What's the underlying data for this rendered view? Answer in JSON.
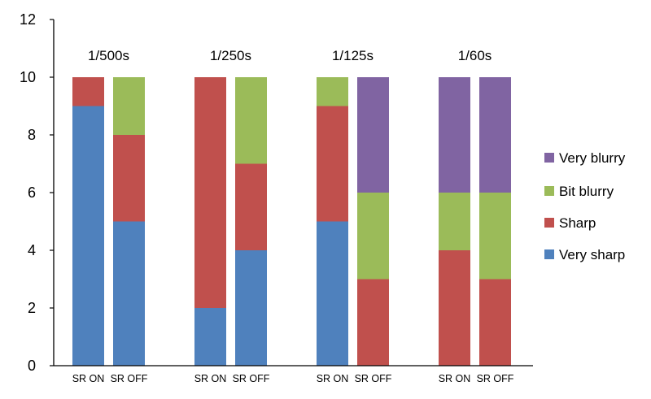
{
  "chart_data": {
    "type": "stacked-bar",
    "title": "",
    "xlabel": "",
    "ylabel": "",
    "ylim": [
      0,
      12
    ],
    "yticks": [
      0,
      2,
      4,
      6,
      8,
      10,
      12
    ],
    "grid": false,
    "legend_position": "right",
    "groups": [
      {
        "label": "1/500s",
        "bars": [
          {
            "label": "SR ON",
            "values": {
              "very_sharp": 9,
              "sharp": 1,
              "bit_blurry": 0,
              "very_blurry": 0
            }
          },
          {
            "label": "SR OFF",
            "values": {
              "very_sharp": 5,
              "sharp": 3,
              "bit_blurry": 2,
              "very_blurry": 0
            }
          }
        ]
      },
      {
        "label": "1/250s",
        "bars": [
          {
            "label": "SR ON",
            "values": {
              "very_sharp": 2,
              "sharp": 8,
              "bit_blurry": 0,
              "very_blurry": 0
            }
          },
          {
            "label": "SR OFF",
            "values": {
              "very_sharp": 4,
              "sharp": 3,
              "bit_blurry": 3,
              "very_blurry": 0
            }
          }
        ]
      },
      {
        "label": "1/125s",
        "bars": [
          {
            "label": "SR ON",
            "values": {
              "very_sharp": 5,
              "sharp": 4,
              "bit_blurry": 1,
              "very_blurry": 0
            }
          },
          {
            "label": "SR OFF",
            "values": {
              "very_sharp": 0,
              "sharp": 3,
              "bit_blurry": 3,
              "very_blurry": 4
            }
          }
        ]
      },
      {
        "label": "1/60s",
        "bars": [
          {
            "label": "SR ON",
            "values": {
              "very_sharp": 0,
              "sharp": 4,
              "bit_blurry": 2,
              "very_blurry": 4
            }
          },
          {
            "label": "SR OFF",
            "values": {
              "very_sharp": 0,
              "sharp": 3,
              "bit_blurry": 3,
              "very_blurry": 4
            }
          }
        ]
      }
    ],
    "series": [
      {
        "key": "very_sharp",
        "name": "Very sharp",
        "color": "#4F81BD"
      },
      {
        "key": "sharp",
        "name": "Sharp",
        "color": "#C0504D"
      },
      {
        "key": "bit_blurry",
        "name": "Bit blurry",
        "color": "#9BBB59"
      },
      {
        "key": "very_blurry",
        "name": "Very blurry",
        "color": "#8064A2"
      }
    ],
    "legend_order": [
      "very_blurry",
      "bit_blurry",
      "sharp",
      "very_sharp"
    ]
  }
}
